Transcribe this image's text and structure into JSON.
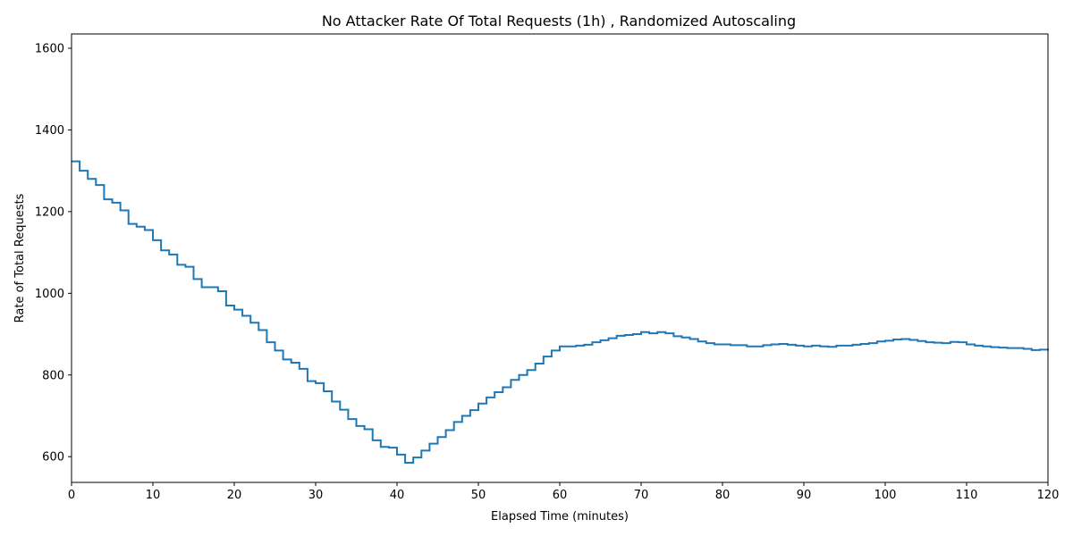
{
  "chart_data": {
    "type": "line",
    "title": "No Attacker Rate Of Total Requests (1h) , Randomized Autoscaling",
    "xlabel": "Elapsed Time (minutes)",
    "ylabel": "Rate of Total Requests",
    "xlim": [
      0,
      120
    ],
    "ylim": [
      537,
      1635
    ],
    "x_ticks": [
      0,
      10,
      20,
      30,
      40,
      50,
      60,
      70,
      80,
      90,
      100,
      110,
      120
    ],
    "y_ticks": [
      600,
      800,
      1000,
      1200,
      1400,
      1600
    ],
    "grid": false,
    "legend": "none",
    "series_color": "#1f77b4",
    "series": [
      {
        "x": [
          0,
          1,
          2,
          3,
          4,
          5,
          6,
          7,
          8,
          9,
          10,
          11,
          12,
          13,
          14,
          15,
          16,
          17,
          18,
          19,
          20,
          21,
          22,
          23,
          24,
          25,
          26,
          27,
          28,
          29,
          30,
          31,
          32,
          33,
          34,
          35,
          36,
          37,
          38,
          39,
          40,
          41,
          42,
          43,
          44,
          45,
          46,
          47,
          48,
          49,
          50,
          51,
          52,
          53,
          54,
          55,
          56,
          57,
          58,
          59,
          60,
          61,
          62,
          63,
          64,
          65,
          66,
          67,
          68,
          69,
          70,
          71,
          72,
          73,
          74,
          75,
          76,
          77,
          78,
          79,
          80,
          81,
          82,
          83,
          84,
          85,
          86,
          87,
          88,
          89,
          90,
          91,
          92,
          93,
          94,
          95,
          96,
          97,
          98,
          99,
          100,
          101,
          102,
          103,
          104,
          105,
          106,
          107,
          108,
          109,
          110,
          111,
          112,
          113,
          114,
          115,
          116,
          117,
          118,
          119,
          120
        ],
        "y": [
          1323,
          1300,
          1280,
          1265,
          1230,
          1222,
          1203,
          1170,
          1163,
          1155,
          1130,
          1105,
          1095,
          1070,
          1065,
          1035,
          1015,
          1015,
          1005,
          970,
          960,
          945,
          928,
          910,
          880,
          860,
          838,
          830,
          815,
          785,
          780,
          760,
          735,
          715,
          692,
          675,
          667,
          640,
          624,
          622,
          605,
          585,
          598,
          615,
          632,
          648,
          665,
          685,
          700,
          714,
          730,
          745,
          758,
          770,
          788,
          800,
          812,
          828,
          845,
          860,
          870,
          870,
          872,
          874,
          880,
          885,
          890,
          896,
          898,
          900,
          905,
          902,
          905,
          902,
          895,
          892,
          888,
          882,
          878,
          875,
          875,
          873,
          873,
          870,
          870,
          873,
          875,
          876,
          874,
          872,
          870,
          872,
          870,
          869,
          872,
          872,
          874,
          876,
          878,
          882,
          884,
          887,
          888,
          886,
          883,
          880,
          879,
          878,
          881,
          880,
          875,
          872,
          870,
          868,
          867,
          866,
          866,
          864,
          861,
          862,
          864
        ]
      }
    ]
  }
}
